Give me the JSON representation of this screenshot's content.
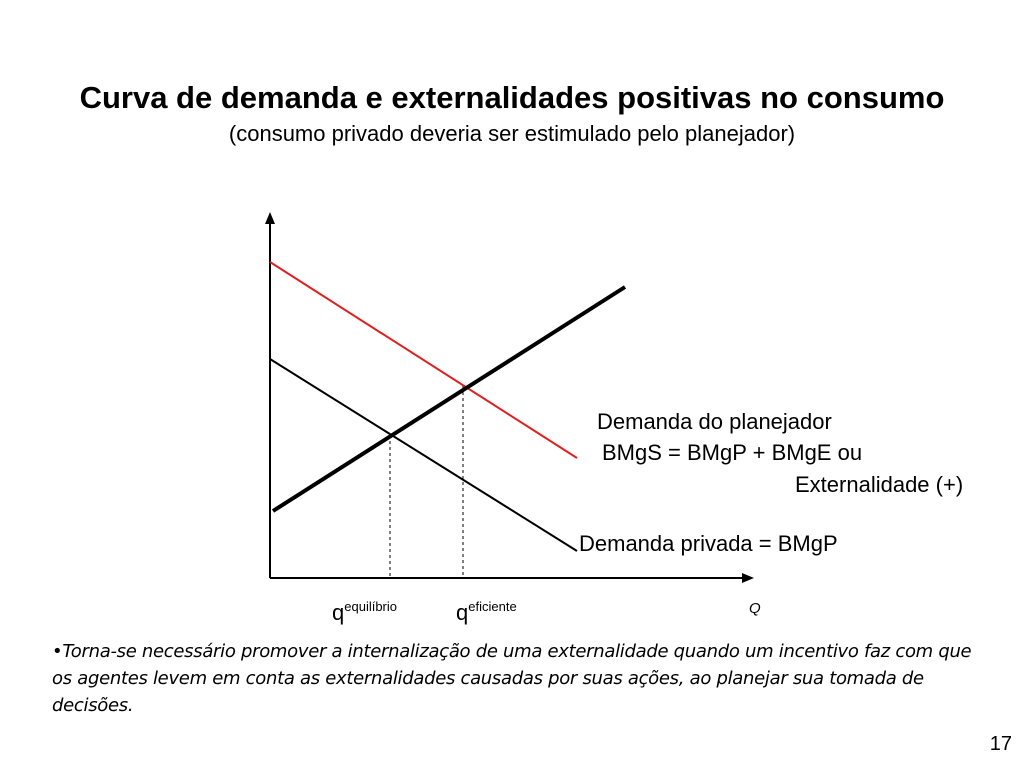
{
  "slide": {
    "title": "Curva de demanda e externalidades positivas no consumo",
    "subtitle": "(consumo privado deveria ser estimulado pelo planejador)",
    "page_number": "17"
  },
  "diagram": {
    "label_planner_demand": "Demanda do planejador",
    "label_bmgs": "BMgS =  BMgP + BMgE ou",
    "label_externality": "Externalidade (+)",
    "label_private_demand": "Demanda privada = BMgP",
    "q_base": "q",
    "q_equilibrio_sup": "equilíbrio",
    "q_eficiente_sup": "eficiente",
    "axis_x_label": "Q",
    "colors": {
      "planner_curve": "#e02020",
      "curves": "#000000"
    }
  },
  "note": {
    "text": "•Torna-se necessário promover a internalização de uma externalidade quando um incentivo faz com que os agentes levem em conta as externalidades causadas por suas ações, ao planejar sua tomada de decisões."
  }
}
